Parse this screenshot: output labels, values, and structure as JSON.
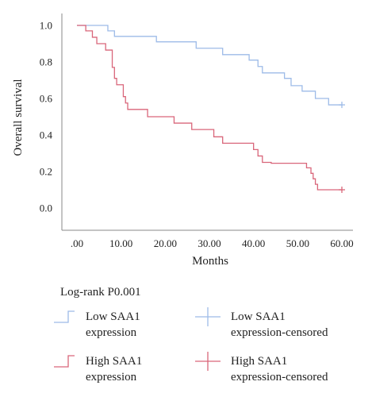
{
  "chart_data": {
    "type": "line",
    "subtype": "kaplan-meier",
    "xlabel": "Months",
    "ylabel": "Overall survival",
    "xlim": [
      0,
      60
    ],
    "ylim": [
      0,
      1.0
    ],
    "x_ticks": [
      ".00",
      "10.00",
      "20.00",
      "30.00",
      "40.00",
      "50.00",
      "60.00"
    ],
    "y_ticks": [
      "0.0",
      "0.2",
      "0.4",
      "0.6",
      "0.8",
      "1.0"
    ],
    "grid": false,
    "legend_title": "Log-rank P0.001",
    "legend_position": "bottom",
    "series": [
      {
        "name": "Low SAA1 expression",
        "censored_name": "Low SAA1 expression-censored",
        "color": "#9dbbe8",
        "steps": [
          [
            0,
            1.0
          ],
          [
            7,
            0.97
          ],
          [
            8.5,
            0.94
          ],
          [
            18,
            0.91
          ],
          [
            27,
            0.875
          ],
          [
            33,
            0.84
          ],
          [
            39,
            0.81
          ],
          [
            41,
            0.775
          ],
          [
            42,
            0.74
          ],
          [
            47,
            0.71
          ],
          [
            48.5,
            0.67
          ],
          [
            51,
            0.64
          ],
          [
            54,
            0.6
          ],
          [
            57,
            0.565
          ],
          [
            60,
            0.565
          ]
        ],
        "censored": [
          [
            60,
            0.565
          ]
        ]
      },
      {
        "name": "High SAA1 expression",
        "censored_name": "High SAA1 expression-censored",
        "color": "#d9667a",
        "steps": [
          [
            0,
            1.0
          ],
          [
            2,
            0.97
          ],
          [
            3.5,
            0.935
          ],
          [
            4.5,
            0.9
          ],
          [
            6.5,
            0.865
          ],
          [
            8,
            0.77
          ],
          [
            8.5,
            0.71
          ],
          [
            9,
            0.675
          ],
          [
            10.5,
            0.61
          ],
          [
            11,
            0.575
          ],
          [
            11.5,
            0.54
          ],
          [
            16,
            0.5
          ],
          [
            22,
            0.465
          ],
          [
            26,
            0.43
          ],
          [
            31,
            0.39
          ],
          [
            33,
            0.355
          ],
          [
            40,
            0.32
          ],
          [
            41,
            0.285
          ],
          [
            42,
            0.25
          ],
          [
            44,
            0.245
          ],
          [
            52,
            0.22
          ],
          [
            53,
            0.19
          ],
          [
            53.5,
            0.16
          ],
          [
            54,
            0.13
          ],
          [
            54.5,
            0.1
          ],
          [
            60,
            0.1
          ]
        ],
        "censored": [
          [
            60,
            0.1
          ]
        ]
      }
    ]
  },
  "legend": {
    "low_line_line1": "Low SAA1",
    "low_line_line2": "expression",
    "low_cens_line1": "Low SAA1",
    "low_cens_line2": "expression-censored",
    "high_line_line1": "High SAA1",
    "high_line_line2": "expression",
    "high_cens_line1": "High SAA1",
    "high_cens_line2": "expression-censored"
  }
}
